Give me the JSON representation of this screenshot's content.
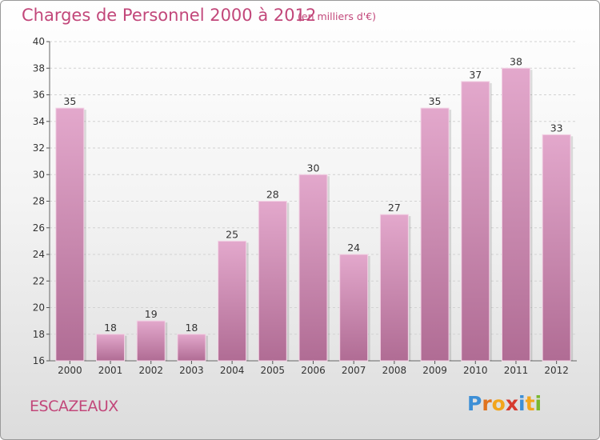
{
  "header": {
    "title": "Charges de Personnel 2000 à 2012",
    "subtitle": "(en milliers d'€)"
  },
  "footer": {
    "place": "ESCAZEAUX",
    "logo_text": "Proxiti",
    "logo_colors": [
      "#3d8fd6",
      "#e0731e",
      "#f2a51c",
      "#d63b2f",
      "#3d8fd6",
      "#f2a51c",
      "#7ab82e"
    ]
  },
  "colors": {
    "bar_top": "#e3a8cc",
    "bar_bottom": "#b06c94",
    "text_accent": "#c2477a",
    "grid": "#d2d2d2"
  },
  "chart_data": {
    "type": "bar",
    "title": "Charges de Personnel 2000 à 2012",
    "subtitle": "(en milliers d'€)",
    "categories": [
      "2000",
      "2001",
      "2002",
      "2003",
      "2004",
      "2005",
      "2006",
      "2007",
      "2008",
      "2009",
      "2010",
      "2011",
      "2012"
    ],
    "values": [
      35,
      18,
      19,
      18,
      25,
      28,
      30,
      24,
      27,
      35,
      37,
      38,
      33
    ],
    "data_labels": [
      "35",
      "18",
      "19",
      "18",
      "25",
      "28",
      "30",
      "24",
      "27",
      "35",
      "37",
      "38",
      "33"
    ],
    "ylim": [
      16,
      40
    ],
    "yticks": [
      "16",
      "18",
      "20",
      "22",
      "24",
      "26",
      "28",
      "30",
      "32",
      "34",
      "36",
      "38",
      "40"
    ],
    "grid": true,
    "xlabel": "",
    "ylabel": ""
  }
}
